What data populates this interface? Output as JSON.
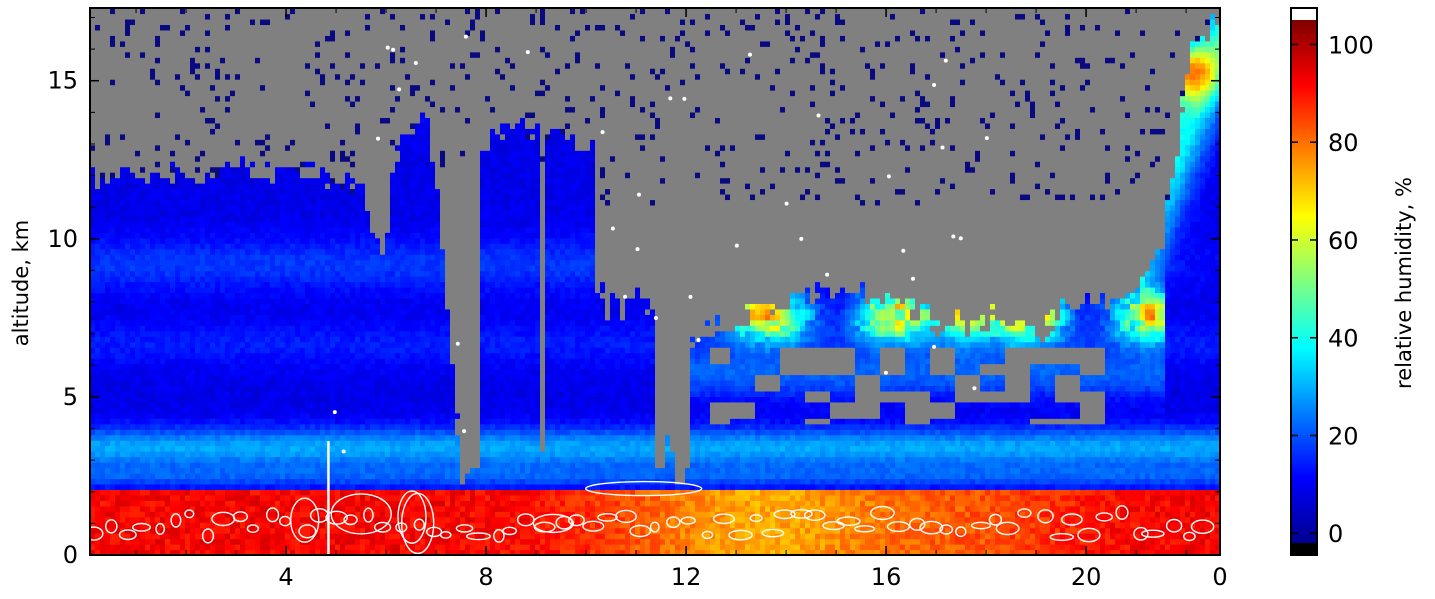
{
  "chart_data": {
    "type": "heatmap",
    "title": "",
    "xlabel": "",
    "ylabel": "altitude, km",
    "x_ticks": [
      "4",
      "8",
      "12",
      "16",
      "20",
      "0"
    ],
    "y_ticks": [
      "0",
      "5",
      "10",
      "15"
    ],
    "ylim": [
      0,
      17.3
    ],
    "colorbar": {
      "label": "relative humidity, %",
      "ticks": [
        "0",
        "20",
        "40",
        "60",
        "80",
        "100"
      ],
      "range": [
        -2,
        105
      ],
      "colormap": "jet",
      "over_color": "#ffffff",
      "under_color": "#000000"
    },
    "missing_color": "#808080",
    "contour_color": "#ffffff",
    "grid": false,
    "description_of_field": "Vertical humidity profile vs time: saturated (80-100%) boundary layer below ~2 km, dry (5-20%) free troposphere above, moist layers near 6-9 km in the second half, gray where data are missing"
  }
}
